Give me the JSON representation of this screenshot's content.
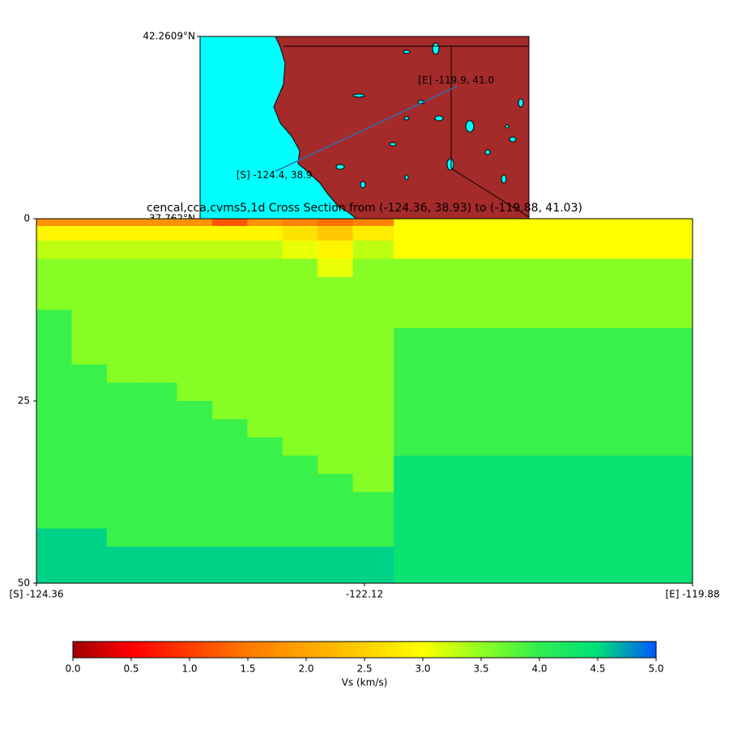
{
  "chart_data": [
    {
      "type": "map",
      "xlim": [
        -126.21,
        -118.11
      ],
      "ylim": [
        37.762,
        42.2609
      ],
      "yticks": [
        {
          "value": 42.2609,
          "label": "42.2609°N"
        },
        {
          "value": 37.762,
          "label": "37.762°N"
        }
      ],
      "route": {
        "x": [
          -124.36,
          -119.88
        ],
        "y": [
          38.93,
          41.03
        ],
        "color": "#2f6fb0"
      },
      "annotations": [
        "[S] -124.4, 38.9",
        "[E] -119.9, 41.0"
      ]
    },
    {
      "type": "heatmap",
      "title": "cencal,cca,cvms5,1d Cross Section from (-124.36, 38.93) to (-119.88, 41.03)",
      "xlim": [
        -124.36,
        -119.88
      ],
      "xticks": [
        {
          "value": -124.36,
          "label": "[S] -124.36"
        },
        {
          "value": -122.12,
          "label": "-122.12"
        },
        {
          "value": -119.88,
          "label": "[E] -119.88"
        }
      ],
      "ylim": [
        0,
        50
      ],
      "y_inverted": true,
      "yticks": [
        0,
        25,
        50
      ],
      "x_edges": [
        -124.36,
        -124.12,
        -123.88,
        -123.64,
        -123.4,
        -123.16,
        -122.92,
        -122.68,
        -122.44,
        -122.2,
        -121.92,
        -119.88
      ],
      "depth_edges": [
        0,
        1,
        3,
        5.5,
        8,
        10,
        12.5,
        15,
        17.5,
        20,
        22.5,
        25,
        27.5,
        30,
        32.5,
        35,
        37.5,
        40,
        42.5,
        45,
        47.5,
        50
      ],
      "values": [
        [
          1.8,
          1.8,
          1.8,
          1.8,
          1.8,
          1.2,
          1.8,
          1.6,
          1.4,
          1.6,
          3.0
        ],
        [
          2.9,
          2.9,
          2.9,
          2.9,
          2.9,
          2.9,
          2.9,
          2.7,
          2.4,
          2.8,
          3.0
        ],
        [
          3.3,
          3.3,
          3.3,
          3.3,
          3.3,
          3.3,
          3.3,
          3.1,
          2.9,
          3.3,
          3.0
        ],
        [
          3.55,
          3.55,
          3.55,
          3.55,
          3.55,
          3.55,
          3.55,
          3.55,
          3.1,
          3.55,
          3.55
        ],
        [
          3.55,
          3.55,
          3.55,
          3.55,
          3.55,
          3.55,
          3.55,
          3.55,
          3.55,
          3.55,
          3.55
        ],
        [
          3.55,
          3.55,
          3.55,
          3.55,
          3.55,
          3.55,
          3.55,
          3.55,
          3.55,
          3.55,
          3.55
        ],
        [
          3.95,
          3.55,
          3.55,
          3.55,
          3.55,
          3.55,
          3.55,
          3.55,
          3.55,
          3.55,
          3.55
        ],
        [
          3.95,
          3.55,
          3.55,
          3.55,
          3.55,
          3.55,
          3.55,
          3.55,
          3.55,
          3.55,
          3.95
        ],
        [
          3.95,
          3.55,
          3.55,
          3.55,
          3.55,
          3.55,
          3.55,
          3.55,
          3.55,
          3.55,
          3.95
        ],
        [
          3.95,
          3.95,
          3.55,
          3.55,
          3.55,
          3.55,
          3.55,
          3.55,
          3.55,
          3.55,
          3.95
        ],
        [
          3.95,
          3.95,
          3.95,
          3.95,
          3.55,
          3.55,
          3.55,
          3.55,
          3.55,
          3.55,
          3.95
        ],
        [
          3.95,
          3.95,
          3.95,
          3.95,
          3.95,
          3.55,
          3.55,
          3.55,
          3.55,
          3.55,
          3.95
        ],
        [
          3.95,
          3.95,
          3.95,
          3.95,
          3.95,
          3.95,
          3.55,
          3.55,
          3.55,
          3.55,
          3.95
        ],
        [
          3.95,
          3.95,
          3.95,
          3.95,
          3.95,
          3.95,
          3.95,
          3.55,
          3.55,
          3.55,
          3.95
        ],
        [
          3.95,
          3.95,
          3.95,
          3.95,
          3.95,
          3.95,
          3.95,
          3.95,
          3.55,
          3.55,
          4.4
        ],
        [
          3.95,
          3.95,
          3.95,
          3.95,
          3.95,
          3.95,
          3.95,
          3.95,
          3.95,
          3.55,
          4.4
        ],
        [
          3.95,
          3.95,
          3.95,
          3.95,
          3.95,
          3.95,
          3.95,
          3.95,
          3.95,
          3.95,
          4.4
        ],
        [
          3.95,
          3.95,
          3.95,
          3.95,
          3.95,
          3.95,
          3.95,
          3.95,
          3.95,
          3.95,
          4.4
        ],
        [
          4.55,
          4.55,
          3.95,
          3.95,
          3.95,
          3.95,
          3.95,
          3.95,
          3.95,
          3.95,
          4.4
        ],
        [
          4.55,
          4.55,
          4.55,
          4.55,
          4.55,
          4.55,
          4.55,
          4.55,
          4.55,
          4.55,
          4.4
        ],
        [
          4.55,
          4.55,
          4.55,
          4.55,
          4.55,
          4.55,
          4.55,
          4.55,
          4.55,
          4.55,
          4.4
        ]
      ]
    },
    {
      "type": "colorbar",
      "xlabel": "Vs (km/s)",
      "clim": [
        0,
        5
      ],
      "colormap": [
        "#a00000",
        "#ff0000",
        "#ff3d00",
        "#ff7a00",
        "#ffa500",
        "#ffd000",
        "#ffff00",
        "#90ff20",
        "#30ee50",
        "#00e07a",
        "#0055ff"
      ],
      "xticks": [
        {
          "value": 0,
          "label": "0.0"
        },
        {
          "value": 0.5,
          "label": "0.5"
        },
        {
          "value": 1,
          "label": "1.0"
        },
        {
          "value": 1.5,
          "label": "1.5"
        },
        {
          "value": 2,
          "label": "2.0"
        },
        {
          "value": 2.5,
          "label": "2.5"
        },
        {
          "value": 3,
          "label": "3.0"
        },
        {
          "value": 3.5,
          "label": "3.5"
        },
        {
          "value": 4,
          "label": "4.0"
        },
        {
          "value": 4.5,
          "label": "4.5"
        },
        {
          "value": 5,
          "label": "5.0"
        }
      ]
    }
  ]
}
